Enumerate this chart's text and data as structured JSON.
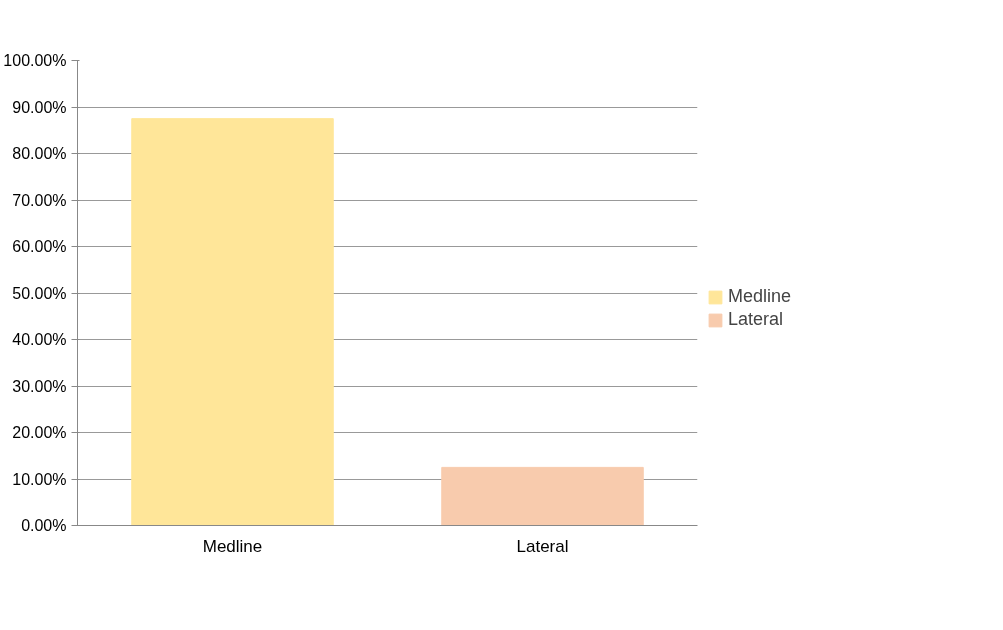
{
  "chart_data": {
    "type": "bar",
    "categories": [
      "Medline",
      "Lateral"
    ],
    "series": [
      {
        "name": "Medline",
        "color": "#ffe699",
        "values": [
          87.5,
          null
        ]
      },
      {
        "name": "Lateral",
        "color": "#f8cbad",
        "values": [
          null,
          12.5
        ]
      }
    ],
    "ylim": [
      0,
      100
    ],
    "yticks": [
      {
        "value": 0,
        "label": "0.00%"
      },
      {
        "value": 10,
        "label": "10.00%"
      },
      {
        "value": 20,
        "label": "20.00%"
      },
      {
        "value": 30,
        "label": "30.00%"
      },
      {
        "value": 40,
        "label": "40.00%"
      },
      {
        "value": 50,
        "label": "50.00%"
      },
      {
        "value": 60,
        "label": "60.00%"
      },
      {
        "value": 70,
        "label": "70.00%"
      },
      {
        "value": 80,
        "label": "80.00%"
      },
      {
        "value": 90,
        "label": "90.00%"
      },
      {
        "value": 100,
        "label": "100.00%"
      }
    ],
    "grid": "y",
    "legend": "right"
  }
}
